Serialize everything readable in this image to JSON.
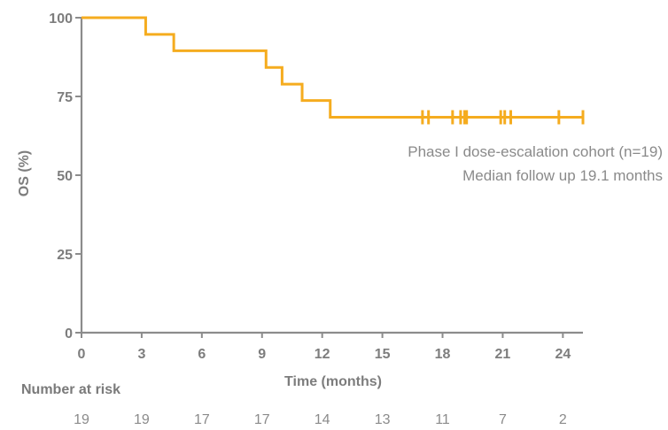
{
  "chart_data": {
    "type": "line",
    "title": "",
    "xlabel": "Time (months)",
    "ylabel": "OS (%)",
    "xlim": [
      0,
      25
    ],
    "ylim": [
      0,
      100
    ],
    "x_ticks": [
      0,
      3,
      6,
      9,
      12,
      15,
      18,
      21,
      24
    ],
    "y_ticks": [
      0,
      25,
      50,
      75,
      100
    ],
    "colors": {
      "line": "#f5ac1f",
      "axis": "#8c8c8c",
      "text": "#7d7d7d"
    },
    "series": [
      {
        "x": [
          0,
          3.2,
          3.2,
          4.6,
          4.6,
          9.2,
          9.2,
          10.0,
          10.0,
          11.0,
          11.0,
          12.4,
          12.4,
          25.0
        ],
        "y": [
          100,
          100,
          94.7,
          94.7,
          89.5,
          89.5,
          84.2,
          84.2,
          78.9,
          78.9,
          73.7,
          73.7,
          68.4,
          68.4
        ],
        "censored_x": [
          17.0,
          17.3,
          18.5,
          18.9,
          19.1,
          19.2,
          20.9,
          21.1,
          21.4,
          23.8,
          25.0
        ],
        "censored_y": 68.4
      }
    ],
    "annotations": [
      "Phase I dose-escalation cohort (n=19)",
      "Median follow up 19.1 months"
    ],
    "risk_table": {
      "title": "Number at risk",
      "values": [
        "19",
        "19",
        "17",
        "17",
        "14",
        "13",
        "11",
        "7",
        "2"
      ]
    }
  }
}
